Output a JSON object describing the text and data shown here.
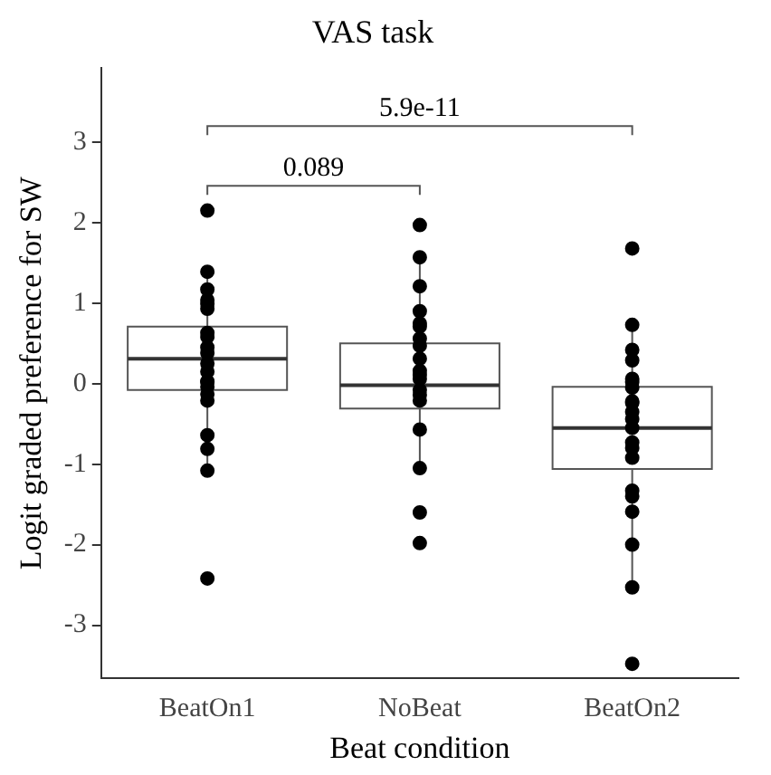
{
  "chart_data": {
    "type": "box",
    "title": "VAS task",
    "xlabel": "Beat condition",
    "ylabel": "Logit graded preference for SW",
    "categories": [
      "BeatOn1",
      "NoBeat",
      "BeatOn2"
    ],
    "boxes": [
      {
        "low": -1.08,
        "q1": -0.08,
        "median": 0.31,
        "q3": 0.71,
        "high": 1.39
      },
      {
        "low": -1.05,
        "q1": -0.31,
        "median": -0.02,
        "q3": 0.5,
        "high": 1.56
      },
      {
        "low": -2.53,
        "q1": -1.06,
        "median": -0.55,
        "q3": -0.04,
        "high": 0.71
      }
    ],
    "series": [
      {
        "type": "scatter",
        "color": "#000000",
        "x": [
          "BeatOn1",
          "BeatOn1",
          "BeatOn1",
          "BeatOn1",
          "BeatOn1",
          "BeatOn1",
          "BeatOn1",
          "BeatOn1",
          "BeatOn1",
          "BeatOn1",
          "BeatOn1",
          "BeatOn1",
          "BeatOn1",
          "BeatOn1",
          "BeatOn1",
          "BeatOn1",
          "BeatOn1",
          "BeatOn1",
          "BeatOn1",
          "BeatOn1",
          "BeatOn1",
          "NoBeat",
          "NoBeat",
          "NoBeat",
          "NoBeat",
          "NoBeat",
          "NoBeat",
          "NoBeat",
          "NoBeat",
          "NoBeat",
          "NoBeat",
          "NoBeat",
          "NoBeat",
          "NoBeat",
          "NoBeat",
          "NoBeat",
          "NoBeat",
          "NoBeat",
          "NoBeat",
          "NoBeat",
          "BeatOn2",
          "BeatOn2",
          "BeatOn2",
          "BeatOn2",
          "BeatOn2",
          "BeatOn2",
          "BeatOn2",
          "BeatOn2",
          "BeatOn2",
          "BeatOn2",
          "BeatOn2",
          "BeatOn2",
          "BeatOn2",
          "BeatOn2",
          "BeatOn2",
          "BeatOn2",
          "BeatOn2",
          "BeatOn2",
          "BeatOn2",
          "BeatOn2",
          "BeatOn2"
        ],
        "values": [
          2.15,
          1.39,
          1.17,
          1.04,
          0.99,
          0.93,
          0.58,
          0.63,
          0.45,
          0.38,
          0.25,
          0.15,
          0.03,
          0.02,
          -0.04,
          -0.13,
          -0.21,
          -0.64,
          -0.81,
          -1.08,
          -2.42,
          1.97,
          1.57,
          1.21,
          0.9,
          0.75,
          0.71,
          0.56,
          0.47,
          0.31,
          0.16,
          0.11,
          0.06,
          -0.08,
          -0.14,
          -0.21,
          -0.57,
          -1.05,
          -1.6,
          -1.98,
          1.68,
          0.73,
          0.42,
          0.29,
          0.06,
          0.02,
          -0.05,
          -0.22,
          -0.24,
          -0.35,
          -0.44,
          -0.55,
          -0.73,
          -0.8,
          -0.92,
          -1.33,
          -1.4,
          -1.59,
          -2.0,
          -2.53,
          -3.48
        ]
      }
    ],
    "ylim": [
      -3.66,
      3.92
    ],
    "yticks": [
      -3,
      -2,
      -1,
      0,
      1,
      2,
      3
    ],
    "grid": false,
    "legend": false,
    "annotations": [
      "0.089",
      "5.9e-11"
    ]
  }
}
